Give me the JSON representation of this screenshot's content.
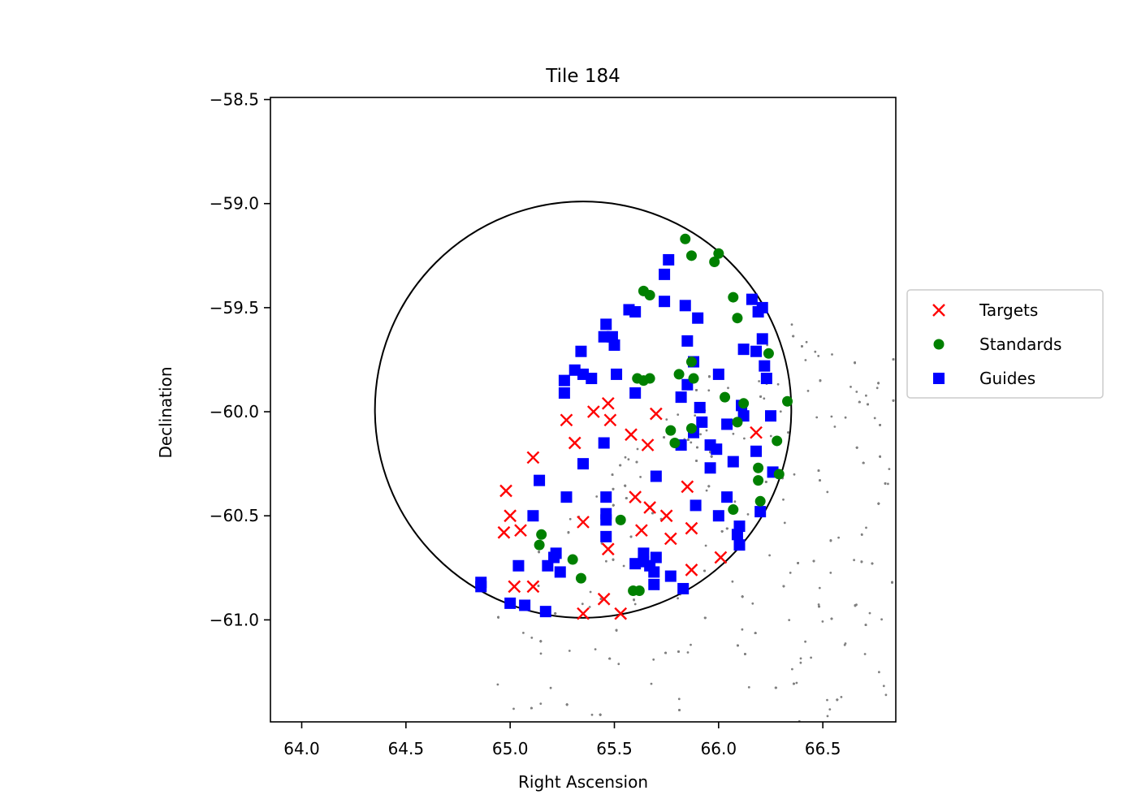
{
  "chart_data": {
    "type": "scatter",
    "title": "Tile 184",
    "xlabel": "Right Ascension",
    "ylabel": "Declination",
    "xlim": [
      63.85,
      66.85
    ],
    "ylim": [
      -61.49,
      -58.49
    ],
    "xticks": [
      64.0,
      64.5,
      65.0,
      65.5,
      66.0,
      66.5
    ],
    "xtick_labels": [
      "64.0",
      "64.5",
      "65.0",
      "65.5",
      "66.0",
      "66.5"
    ],
    "yticks": [
      -58.5,
      -59.0,
      -59.5,
      -60.0,
      -60.5,
      -61.0
    ],
    "ytick_labels": [
      "−58.5",
      "−59.0",
      "−59.5",
      "−60.0",
      "−60.5",
      "−61.0"
    ],
    "grid": false,
    "legend_position": "right, outside axes",
    "tile_circle": {
      "ra": 65.35,
      "dec": -59.99,
      "radius": 1.0
    },
    "series": [
      {
        "name": "Targets",
        "marker": "x",
        "color": "#ff0000",
        "points": [
          [
            64.98,
            -60.38
          ],
          [
            65.11,
            -60.22
          ],
          [
            65.0,
            -60.5
          ],
          [
            64.97,
            -60.58
          ],
          [
            65.05,
            -60.57
          ],
          [
            65.02,
            -60.84
          ],
          [
            65.11,
            -60.84
          ],
          [
            65.27,
            -60.04
          ],
          [
            65.31,
            -60.15
          ],
          [
            65.35,
            -60.53
          ],
          [
            65.35,
            -60.97
          ],
          [
            65.4,
            -60.0
          ],
          [
            65.45,
            -60.9
          ],
          [
            65.47,
            -59.96
          ],
          [
            65.48,
            -60.04
          ],
          [
            65.47,
            -60.66
          ],
          [
            65.53,
            -60.97
          ],
          [
            65.58,
            -60.11
          ],
          [
            65.6,
            -60.41
          ],
          [
            65.63,
            -60.57
          ],
          [
            65.66,
            -60.16
          ],
          [
            65.67,
            -60.46
          ],
          [
            65.7,
            -60.01
          ],
          [
            65.75,
            -60.5
          ],
          [
            65.77,
            -60.61
          ],
          [
            65.85,
            -60.36
          ],
          [
            65.87,
            -60.56
          ],
          [
            65.87,
            -60.76
          ],
          [
            66.01,
            -60.7
          ],
          [
            66.18,
            -60.1
          ]
        ]
      },
      {
        "name": "Standards",
        "marker": "o",
        "color": "#008000",
        "points": [
          [
            65.14,
            -60.64
          ],
          [
            65.15,
            -60.59
          ],
          [
            65.3,
            -60.71
          ],
          [
            65.34,
            -60.8
          ],
          [
            65.53,
            -60.52
          ],
          [
            65.59,
            -60.86
          ],
          [
            65.62,
            -60.86
          ],
          [
            65.64,
            -59.42
          ],
          [
            65.67,
            -59.44
          ],
          [
            65.61,
            -59.84
          ],
          [
            65.64,
            -59.85
          ],
          [
            65.67,
            -59.84
          ],
          [
            65.77,
            -60.09
          ],
          [
            65.79,
            -60.15
          ],
          [
            65.81,
            -59.82
          ],
          [
            65.84,
            -59.17
          ],
          [
            65.87,
            -59.25
          ],
          [
            65.87,
            -60.08
          ],
          [
            65.87,
            -59.76
          ],
          [
            65.88,
            -59.84
          ],
          [
            65.98,
            -59.28
          ],
          [
            66.0,
            -59.24
          ],
          [
            66.03,
            -59.93
          ],
          [
            66.07,
            -59.45
          ],
          [
            66.07,
            -60.47
          ],
          [
            66.09,
            -59.55
          ],
          [
            66.09,
            -60.05
          ],
          [
            66.12,
            -59.96
          ],
          [
            66.19,
            -60.27
          ],
          [
            66.19,
            -60.33
          ],
          [
            66.2,
            -60.43
          ],
          [
            66.24,
            -59.72
          ],
          [
            66.28,
            -60.14
          ],
          [
            66.29,
            -60.3
          ],
          [
            66.33,
            -59.95
          ]
        ]
      },
      {
        "name": "Guides",
        "marker": "s",
        "color": "#0000ff",
        "points": [
          [
            64.86,
            -60.84
          ],
          [
            64.86,
            -60.82
          ],
          [
            65.0,
            -60.92
          ],
          [
            65.04,
            -60.74
          ],
          [
            65.07,
            -60.93
          ],
          [
            65.11,
            -60.5
          ],
          [
            65.14,
            -60.33
          ],
          [
            65.17,
            -60.96
          ],
          [
            65.18,
            -60.74
          ],
          [
            65.21,
            -60.7
          ],
          [
            65.22,
            -60.68
          ],
          [
            65.24,
            -60.77
          ],
          [
            65.26,
            -59.85
          ],
          [
            65.26,
            -59.91
          ],
          [
            65.27,
            -60.41
          ],
          [
            65.31,
            -59.8
          ],
          [
            65.34,
            -59.71
          ],
          [
            65.35,
            -59.82
          ],
          [
            65.35,
            -60.25
          ],
          [
            65.39,
            -59.84
          ],
          [
            65.45,
            -59.64
          ],
          [
            65.46,
            -59.58
          ],
          [
            65.45,
            -60.15
          ],
          [
            65.46,
            -60.41
          ],
          [
            65.46,
            -60.49
          ],
          [
            65.46,
            -60.52
          ],
          [
            65.46,
            -60.6
          ],
          [
            65.49,
            -59.64
          ],
          [
            65.5,
            -59.68
          ],
          [
            65.51,
            -59.82
          ],
          [
            65.57,
            -59.51
          ],
          [
            65.6,
            -59.52
          ],
          [
            65.6,
            -59.91
          ],
          [
            65.6,
            -60.73
          ],
          [
            65.64,
            -60.68
          ],
          [
            65.64,
            -60.72
          ],
          [
            65.67,
            -60.74
          ],
          [
            65.69,
            -60.77
          ],
          [
            65.7,
            -60.7
          ],
          [
            65.69,
            -60.83
          ],
          [
            65.7,
            -60.31
          ],
          [
            65.74,
            -59.34
          ],
          [
            65.76,
            -59.27
          ],
          [
            65.74,
            -59.47
          ],
          [
            65.77,
            -60.79
          ],
          [
            65.82,
            -59.93
          ],
          [
            65.82,
            -60.16
          ],
          [
            65.83,
            -60.85
          ],
          [
            65.84,
            -59.49
          ],
          [
            65.85,
            -59.66
          ],
          [
            65.85,
            -59.87
          ],
          [
            65.88,
            -60.1
          ],
          [
            65.88,
            -59.76
          ],
          [
            65.89,
            -60.45
          ],
          [
            65.9,
            -59.55
          ],
          [
            65.91,
            -59.98
          ],
          [
            65.92,
            -60.05
          ],
          [
            65.96,
            -60.27
          ],
          [
            65.96,
            -60.16
          ],
          [
            65.99,
            -60.18
          ],
          [
            66.0,
            -59.82
          ],
          [
            66.0,
            -60.5
          ],
          [
            66.04,
            -60.06
          ],
          [
            66.04,
            -60.41
          ],
          [
            66.07,
            -60.24
          ],
          [
            66.09,
            -60.59
          ],
          [
            66.1,
            -60.55
          ],
          [
            66.1,
            -60.64
          ],
          [
            66.11,
            -59.97
          ],
          [
            66.12,
            -60.02
          ],
          [
            66.12,
            -59.7
          ],
          [
            66.16,
            -59.46
          ],
          [
            66.18,
            -59.71
          ],
          [
            66.19,
            -59.52
          ],
          [
            66.18,
            -60.19
          ],
          [
            66.2,
            -60.48
          ],
          [
            66.21,
            -59.5
          ],
          [
            66.21,
            -59.65
          ],
          [
            66.22,
            -59.78
          ],
          [
            66.23,
            -59.84
          ],
          [
            66.25,
            -60.02
          ],
          [
            66.26,
            -60.29
          ]
        ]
      }
    ],
    "background_stars": {
      "color": "#808080",
      "ra_range": [
        64.82,
        66.85
      ],
      "dec_range": [
        -61.49,
        -59.58
      ],
      "count": 900
    }
  }
}
